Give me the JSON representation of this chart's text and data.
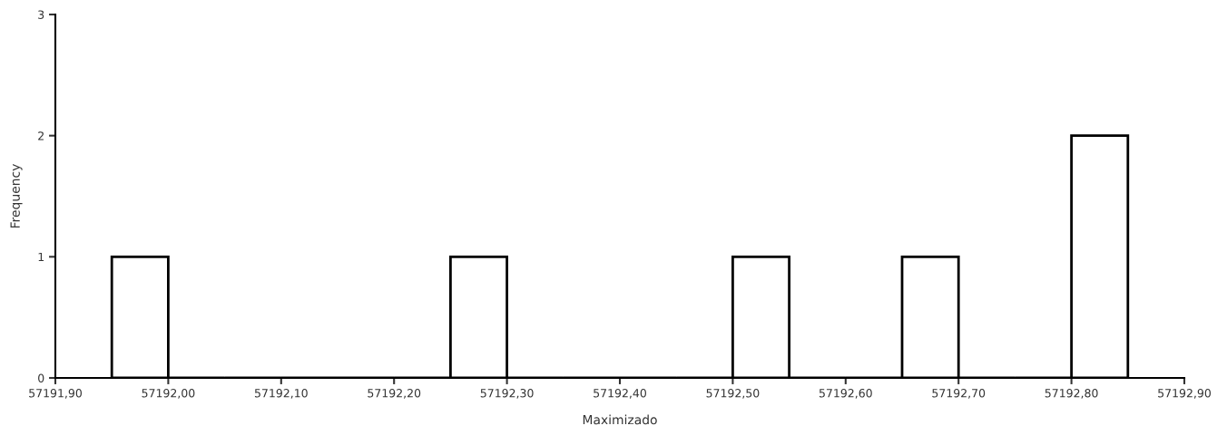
{
  "chart_data": {
    "type": "histogram",
    "xlabel": "Maximizado",
    "ylabel": "Frequency",
    "bins": [
      57191.95,
      57192.0,
      57192.05,
      57192.1,
      57192.15,
      57192.2,
      57192.25,
      57192.3,
      57192.35,
      57192.4,
      57192.45,
      57192.5,
      57192.55,
      57192.6,
      57192.65,
      57192.7,
      57192.75,
      57192.8,
      57192.85
    ],
    "values": [
      1,
      0,
      0,
      0,
      0,
      0,
      1,
      0,
      0,
      0,
      0,
      1,
      0,
      0,
      1,
      0,
      0,
      2
    ],
    "color": "#000000",
    "xlim": [
      57191.9,
      57192.9
    ],
    "xticks": [
      {
        "value": 57191.9,
        "label": "57191,90"
      },
      {
        "value": 57192.0,
        "label": "57192,00"
      },
      {
        "value": 57192.1,
        "label": "57192,10"
      },
      {
        "value": 57192.2,
        "label": "57192,20"
      },
      {
        "value": 57192.3,
        "label": "57192,30"
      },
      {
        "value": 57192.4,
        "label": "57192,40"
      },
      {
        "value": 57192.5,
        "label": "57192,50"
      },
      {
        "value": 57192.6,
        "label": "57192,60"
      },
      {
        "value": 57192.7,
        "label": "57192,70"
      },
      {
        "value": 57192.8,
        "label": "57192,80"
      },
      {
        "value": 57192.9,
        "label": "57192,90"
      }
    ],
    "ylim": [
      0,
      3
    ],
    "yticks": [
      0,
      1,
      2,
      3
    ],
    "grid": false,
    "legend": false
  }
}
